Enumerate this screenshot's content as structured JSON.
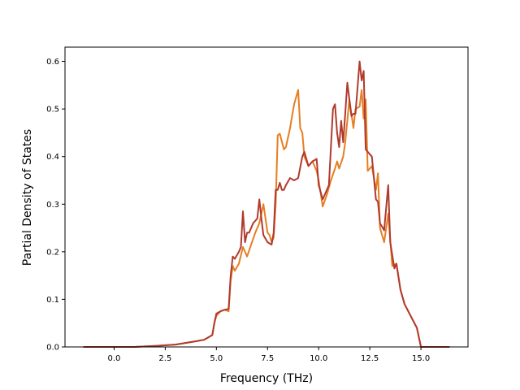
{
  "chart_data": {
    "type": "line",
    "title": "",
    "xlabel": "Frequency (THz)",
    "ylabel": "Partial Density of States",
    "xlim": [
      -2.4,
      17.3
    ],
    "ylim": [
      0.0,
      0.63
    ],
    "xticks": [
      0.0,
      2.5,
      5.0,
      7.5,
      10.0,
      12.5,
      15.0
    ],
    "xtick_labels": [
      "0.0",
      "2.5",
      "5.0",
      "7.5",
      "10.0",
      "12.5",
      "15.0"
    ],
    "yticks": [
      0.0,
      0.1,
      0.2,
      0.3,
      0.4,
      0.5,
      0.6
    ],
    "ytick_labels": [
      "0.0",
      "0.1",
      "0.2",
      "0.3",
      "0.4",
      "0.5",
      "0.6"
    ],
    "grid": false,
    "legend": "none",
    "series": [
      {
        "color": "#e67e22",
        "x": [
          -1.5,
          -1.0,
          0.0,
          1.0,
          2.0,
          3.0,
          4.0,
          4.4,
          4.8,
          4.9,
          5.0,
          5.2,
          5.4,
          5.6,
          5.7,
          5.8,
          5.9,
          6.1,
          6.3,
          6.5,
          6.7,
          6.9,
          7.1,
          7.3,
          7.5,
          7.6,
          7.7,
          7.8,
          7.9,
          8.0,
          8.1,
          8.3,
          8.4,
          8.6,
          8.8,
          9.0,
          9.1,
          9.2,
          9.3,
          9.5,
          9.7,
          9.9,
          10.0,
          10.2,
          10.4,
          10.6,
          10.8,
          10.9,
          11.0,
          11.2,
          11.3,
          11.5,
          11.7,
          11.8,
          12.0,
          12.1,
          12.2,
          12.3,
          12.4,
          12.5,
          12.6,
          12.8,
          12.9,
          13.0,
          13.2,
          13.4,
          13.6,
          13.8,
          14.0,
          14.2,
          14.5,
          14.8,
          15.0,
          15.2,
          15.6,
          16.4
        ],
        "y": [
          0.0,
          0.0,
          0.0,
          0.0,
          0.002,
          0.005,
          0.012,
          0.015,
          0.025,
          0.05,
          0.065,
          0.075,
          0.078,
          0.075,
          0.14,
          0.17,
          0.16,
          0.175,
          0.21,
          0.19,
          0.215,
          0.24,
          0.26,
          0.3,
          0.24,
          0.235,
          0.22,
          0.23,
          0.3,
          0.445,
          0.448,
          0.415,
          0.42,
          0.46,
          0.51,
          0.54,
          0.46,
          0.45,
          0.4,
          0.38,
          0.39,
          0.37,
          0.35,
          0.295,
          0.32,
          0.35,
          0.375,
          0.39,
          0.375,
          0.4,
          0.43,
          0.52,
          0.46,
          0.5,
          0.505,
          0.54,
          0.48,
          0.52,
          0.37,
          0.375,
          0.38,
          0.33,
          0.365,
          0.25,
          0.22,
          0.28,
          0.17,
          0.175,
          0.12,
          0.09,
          0.065,
          0.04,
          0.0,
          0.0,
          0.0,
          0.0
        ]
      },
      {
        "color": "#b03a2e",
        "x": [
          -1.5,
          -1.0,
          0.0,
          1.0,
          2.0,
          3.0,
          4.0,
          4.4,
          4.8,
          4.9,
          5.0,
          5.2,
          5.4,
          5.6,
          5.7,
          5.8,
          5.9,
          6.1,
          6.2,
          6.3,
          6.4,
          6.5,
          6.6,
          6.8,
          7.0,
          7.1,
          7.2,
          7.3,
          7.5,
          7.7,
          7.8,
          7.9,
          8.0,
          8.1,
          8.2,
          8.3,
          8.4,
          8.6,
          8.8,
          9.0,
          9.2,
          9.3,
          9.5,
          9.7,
          9.9,
          10.0,
          10.2,
          10.4,
          10.5,
          10.7,
          10.8,
          10.9,
          11.0,
          11.1,
          11.2,
          11.3,
          11.4,
          11.6,
          11.7,
          11.8,
          12.0,
          12.1,
          12.2,
          12.3,
          12.4,
          12.5,
          12.6,
          12.8,
          12.9,
          13.0,
          13.2,
          13.4,
          13.5,
          13.7,
          13.8,
          14.0,
          14.2,
          14.5,
          14.8,
          15.0,
          15.2,
          15.6,
          16.4
        ],
        "y": [
          0.0,
          0.0,
          0.0,
          0.0,
          0.002,
          0.005,
          0.012,
          0.015,
          0.025,
          0.05,
          0.07,
          0.075,
          0.078,
          0.08,
          0.15,
          0.19,
          0.185,
          0.2,
          0.21,
          0.285,
          0.22,
          0.24,
          0.24,
          0.26,
          0.27,
          0.31,
          0.27,
          0.235,
          0.22,
          0.215,
          0.24,
          0.33,
          0.33,
          0.345,
          0.33,
          0.33,
          0.34,
          0.355,
          0.35,
          0.355,
          0.4,
          0.41,
          0.38,
          0.39,
          0.395,
          0.34,
          0.31,
          0.33,
          0.34,
          0.5,
          0.51,
          0.45,
          0.42,
          0.475,
          0.43,
          0.49,
          0.555,
          0.485,
          0.49,
          0.49,
          0.6,
          0.56,
          0.58,
          0.415,
          0.41,
          0.405,
          0.4,
          0.31,
          0.305,
          0.26,
          0.245,
          0.34,
          0.22,
          0.165,
          0.175,
          0.12,
          0.09,
          0.065,
          0.04,
          0.0,
          0.0,
          0.0,
          0.0
        ]
      }
    ]
  }
}
